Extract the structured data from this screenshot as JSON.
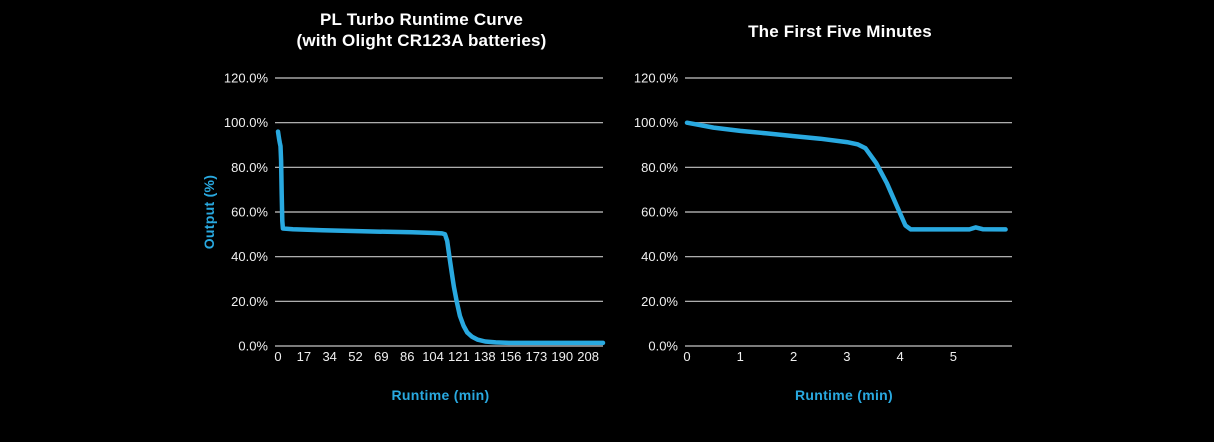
{
  "page": {
    "background": "#000000"
  },
  "colors": {
    "accent": "#29a9e0",
    "grid": "#c6c6c6",
    "title_text": "#ffffff",
    "tick_text": "#f0f0f0"
  },
  "chart_data": [
    {
      "type": "line",
      "title": "PL Turbo Runtime Curve\n(with Olight CR123A batteries)",
      "xlabel": "Runtime (min)",
      "ylabel": "Output (%)",
      "xlim": [
        0,
        218
      ],
      "ylim": [
        0,
        120
      ],
      "grid": true,
      "legend_position": "none",
      "yticks": [
        {
          "v": 120,
          "label": "120.0%"
        },
        {
          "v": 100,
          "label": "100.0%"
        },
        {
          "v": 80,
          "label": "80.0%"
        },
        {
          "v": 60,
          "label": "60.0%"
        },
        {
          "v": 40,
          "label": "40.0%"
        },
        {
          "v": 20,
          "label": "20.0%"
        },
        {
          "v": 0,
          "label": "0.0%"
        }
      ],
      "xticks": [
        {
          "v": 0,
          "label": "0"
        },
        {
          "v": 17.33,
          "label": "17"
        },
        {
          "v": 34.67,
          "label": "34"
        },
        {
          "v": 52,
          "label": "52"
        },
        {
          "v": 69.33,
          "label": "69"
        },
        {
          "v": 86.67,
          "label": "86"
        },
        {
          "v": 104,
          "label": "104"
        },
        {
          "v": 121.33,
          "label": "121"
        },
        {
          "v": 138.67,
          "label": "138"
        },
        {
          "v": 156,
          "label": "156"
        },
        {
          "v": 173.33,
          "label": "173"
        },
        {
          "v": 190.67,
          "label": "190"
        },
        {
          "v": 208,
          "label": "208"
        }
      ],
      "series": [
        {
          "name": "Output",
          "color": "#29a9e0",
          "points": [
            [
              0,
              96
            ],
            [
              0.7,
              93
            ],
            [
              1.2,
              91
            ],
            [
              1.7,
              89.5
            ],
            [
              2.1,
              83
            ],
            [
              2.5,
              68
            ],
            [
              2.9,
              56
            ],
            [
              3.3,
              52.6
            ],
            [
              10,
              52.3
            ],
            [
              30,
              51.8
            ],
            [
              60,
              51.3
            ],
            [
              90,
              50.9
            ],
            [
              105,
              50.6
            ],
            [
              110,
              50.4
            ],
            [
              112,
              50
            ],
            [
              113.5,
              47
            ],
            [
              115,
              40
            ],
            [
              116.5,
              33
            ],
            [
              118,
              26.5
            ],
            [
              120,
              19.5
            ],
            [
              122,
              13.5
            ],
            [
              124.5,
              9
            ],
            [
              127,
              6
            ],
            [
              130,
              4.2
            ],
            [
              134,
              2.8
            ],
            [
              139,
              2
            ],
            [
              146,
              1.6
            ],
            [
              155,
              1.4
            ],
            [
              218,
              1.4
            ]
          ]
        }
      ]
    },
    {
      "type": "line",
      "title": "The First Five Minutes",
      "xlabel": "Runtime (min)",
      "ylabel": "",
      "xlim": [
        0,
        6.1
      ],
      "ylim": [
        0,
        120
      ],
      "grid": true,
      "legend_position": "none",
      "yticks": [
        {
          "v": 120,
          "label": "120.0%"
        },
        {
          "v": 100,
          "label": "100.0%"
        },
        {
          "v": 80,
          "label": "80.0%"
        },
        {
          "v": 60,
          "label": "60.0%"
        },
        {
          "v": 40,
          "label": "40.0%"
        },
        {
          "v": 20,
          "label": "20.0%"
        },
        {
          "v": 0,
          "label": "0.0%"
        }
      ],
      "xticks": [
        {
          "v": 0,
          "label": "0"
        },
        {
          "v": 1,
          "label": "1"
        },
        {
          "v": 2,
          "label": "2"
        },
        {
          "v": 3,
          "label": "3"
        },
        {
          "v": 4,
          "label": "4"
        },
        {
          "v": 5,
          "label": "5"
        }
      ],
      "series": [
        {
          "name": "Output",
          "color": "#29a9e0",
          "points": [
            [
              0,
              100
            ],
            [
              0.5,
              97.8
            ],
            [
              1,
              96.3
            ],
            [
              1.5,
              95.2
            ],
            [
              2,
              94
            ],
            [
              2.5,
              92.8
            ],
            [
              3,
              91.3
            ],
            [
              3.2,
              90.3
            ],
            [
              3.35,
              88.5
            ],
            [
              3.55,
              82
            ],
            [
              3.75,
              73
            ],
            [
              3.95,
              62
            ],
            [
              4.1,
              54
            ],
            [
              4.2,
              52.2
            ],
            [
              5.3,
              52.2
            ],
            [
              5.42,
              53.1
            ],
            [
              5.55,
              52.3
            ],
            [
              5.98,
              52.2
            ]
          ]
        }
      ]
    }
  ]
}
